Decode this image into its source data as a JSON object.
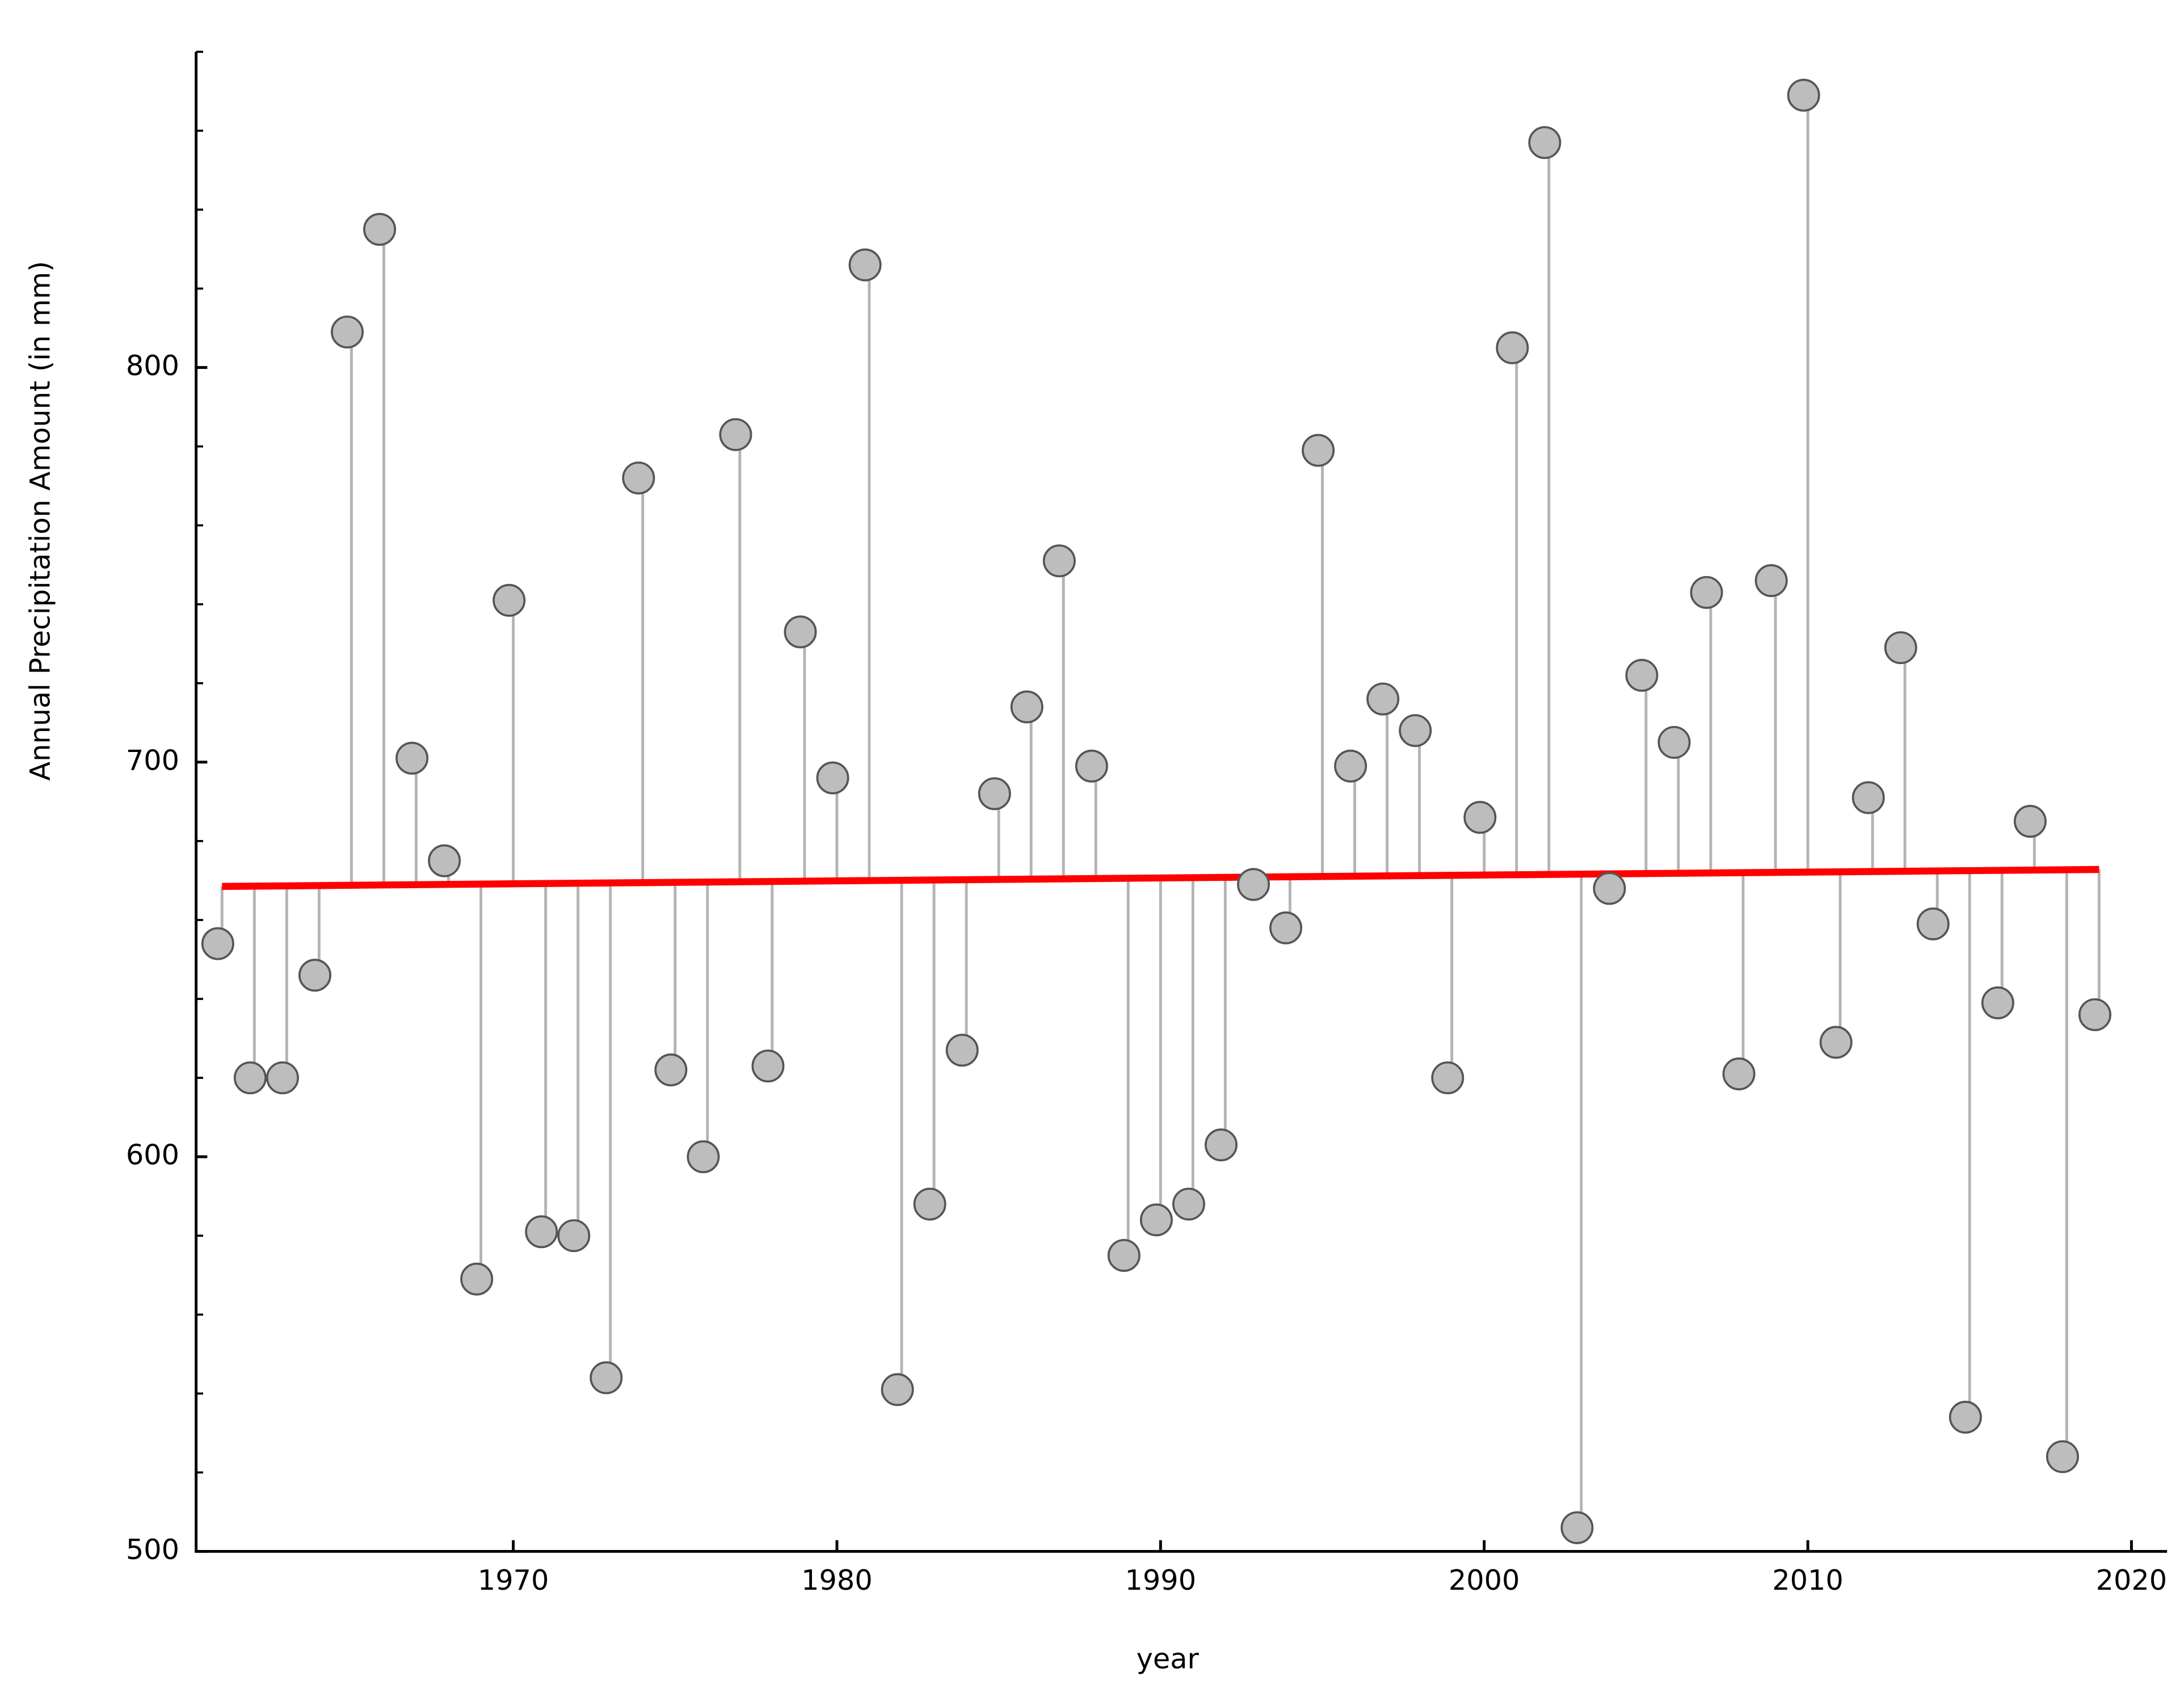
{
  "chart_data": {
    "type": "stem",
    "x_label": "year",
    "y_label": "Annual Precipitation Amount (in mm)",
    "x": [
      1961,
      1962,
      1963,
      1964,
      1965,
      1966,
      1967,
      1968,
      1969,
      1970,
      1971,
      1972,
      1973,
      1974,
      1975,
      1976,
      1977,
      1978,
      1979,
      1980,
      1981,
      1982,
      1983,
      1984,
      1985,
      1986,
      1987,
      1988,
      1989,
      1990,
      1991,
      1992,
      1993,
      1994,
      1995,
      1996,
      1997,
      1998,
      1999,
      2000,
      2001,
      2002,
      2003,
      2004,
      2005,
      2006,
      2007,
      2008,
      2009,
      2010,
      2011,
      2012,
      2013,
      2014,
      2015,
      2016,
      2017,
      2018,
      2019
    ],
    "values": [
      654,
      620,
      620,
      646,
      809,
      835,
      701,
      675,
      569,
      741,
      581,
      580,
      544,
      772,
      622,
      600,
      783,
      623,
      733,
      696,
      826,
      541,
      588,
      627,
      692,
      714,
      751,
      699,
      575,
      584,
      588,
      603,
      669,
      658,
      779,
      699,
      716,
      708,
      620,
      686,
      805,
      857,
      506,
      668,
      722,
      705,
      743,
      621,
      746,
      869,
      629,
      691,
      729,
      659,
      534,
      639,
      685,
      524,
      636
    ],
    "marker_color": "#bdbdbd",
    "stem_color": "#b4b4b4",
    "trend": {
      "x": [
        1961,
        2019
      ],
      "values": [
        668.5,
        672.8
      ],
      "color": "#ff0000"
    },
    "xlim": [
      1960.2,
      2021.1
    ],
    "ylim": [
      500,
      880
    ],
    "xticks": [
      1970,
      1980,
      1990,
      2000,
      2010,
      2020
    ],
    "yticks": [
      500,
      600,
      700,
      800
    ],
    "y_minor_ticks": [
      520,
      540,
      560,
      580,
      620,
      640,
      660,
      680,
      720,
      740,
      760,
      780,
      820,
      840,
      860,
      880
    ]
  }
}
